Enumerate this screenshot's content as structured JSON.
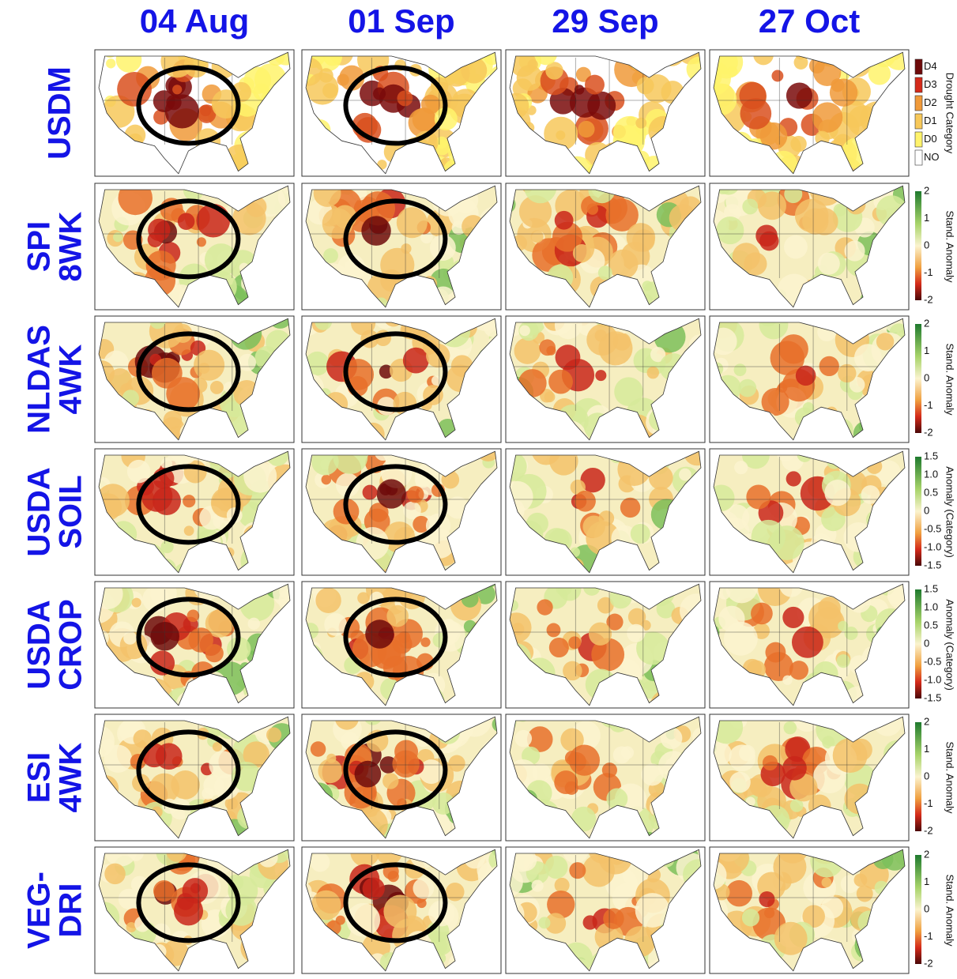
{
  "columns": [
    "04 Aug",
    "01 Sep",
    "29 Sep",
    "27 Oct"
  ],
  "rows": [
    {
      "label_lines": [
        "USDM"
      ],
      "legend": {
        "title": "Drought Category",
        "ticks": [
          "D4",
          "D3",
          "D2",
          "D1",
          "D0",
          "NO"
        ]
      }
    },
    {
      "label_lines": [
        "SPI",
        "8WK"
      ],
      "legend": {
        "title": "Stand. Anomaly",
        "ticks": [
          "2",
          "1",
          "0",
          "-1",
          "-2"
        ]
      }
    },
    {
      "label_lines": [
        "NLDAS",
        "4WK"
      ],
      "legend": {
        "title": "Stand. Anomaly",
        "ticks": [
          "2",
          "1",
          "0",
          "-1",
          "-2"
        ]
      }
    },
    {
      "label_lines": [
        "USDA",
        "SOIL"
      ],
      "legend": {
        "title": "Anomaly (Category)",
        "ticks": [
          "1.5",
          "1.0",
          "0.5",
          "0",
          "-0.5",
          "-1.0",
          "-1.5"
        ]
      }
    },
    {
      "label_lines": [
        "USDA",
        "CROP"
      ],
      "legend": {
        "title": "Anomaly (Category)",
        "ticks": [
          "1.5",
          "1.0",
          "0.5",
          "0",
          "-0.5",
          "-1.0",
          "-1.5"
        ]
      }
    },
    {
      "label_lines": [
        "ESI",
        "4WK"
      ],
      "legend": {
        "title": "Stand. Anomaly",
        "ticks": [
          "2",
          "1",
          "0",
          "-1",
          "-2"
        ]
      }
    },
    {
      "label_lines": [
        "VEG-",
        "DRI"
      ],
      "legend": {
        "title": "Stand. Anomaly",
        "ticks": [
          "2",
          "1",
          "0",
          "-1",
          "-2"
        ]
      }
    }
  ]
}
